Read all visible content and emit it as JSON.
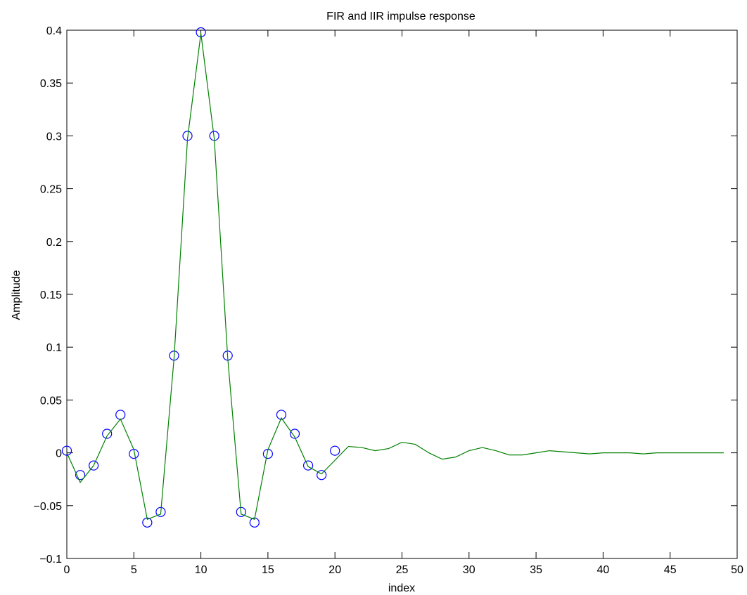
{
  "chart_data": {
    "type": "line",
    "title": "FIR and IIR impulse response",
    "xlabel": "index",
    "ylabel": "Amplitude",
    "xlim": [
      0,
      50
    ],
    "ylim": [
      -0.1,
      0.4
    ],
    "xticks": [
      0,
      5,
      10,
      15,
      20,
      25,
      30,
      35,
      40,
      45,
      50
    ],
    "yticks": [
      -0.1,
      -0.05,
      0,
      0.05,
      0.1,
      0.15,
      0.2,
      0.25,
      0.3,
      0.35,
      0.4
    ],
    "xtick_labels": [
      "0",
      "5",
      "10",
      "15",
      "20",
      "25",
      "30",
      "35",
      "40",
      "45",
      "50"
    ],
    "ytick_labels": [
      "−0.1",
      "−0.05",
      "0",
      "0.05",
      "0.1",
      "0.15",
      "0.2",
      "0.25",
      "0.3",
      "0.35",
      "0.4"
    ],
    "grid": false,
    "series": [
      {
        "style": "markers-circle",
        "color": "#0000ff",
        "x": [
          0,
          1,
          2,
          3,
          4,
          5,
          6,
          7,
          8,
          9,
          10,
          11,
          12,
          13,
          14,
          15,
          16,
          17,
          18,
          19,
          20
        ],
        "y": [
          0.002,
          -0.021,
          -0.012,
          0.018,
          0.036,
          -0.001,
          -0.066,
          -0.056,
          0.092,
          0.3,
          0.398,
          0.3,
          0.092,
          -0.056,
          -0.066,
          -0.001,
          0.036,
          0.018,
          -0.012,
          -0.021,
          0.002
        ]
      },
      {
        "style": "line",
        "color": "#008000",
        "x": [
          0,
          1,
          2,
          3,
          4,
          5,
          6,
          7,
          8,
          9,
          10,
          11,
          12,
          13,
          14,
          15,
          16,
          17,
          18,
          19,
          20,
          21,
          22,
          23,
          24,
          25,
          26,
          27,
          28,
          29,
          30,
          31,
          32,
          33,
          34,
          35,
          36,
          37,
          38,
          39,
          40,
          41,
          42,
          43,
          44,
          45,
          46,
          47,
          48,
          49
        ],
        "y": [
          0.0,
          -0.028,
          -0.012,
          0.016,
          0.032,
          0.003,
          -0.063,
          -0.058,
          0.09,
          0.297,
          0.397,
          0.297,
          0.09,
          -0.058,
          -0.063,
          0.003,
          0.033,
          0.015,
          -0.013,
          -0.02,
          -0.007,
          0.006,
          0.005,
          0.002,
          0.004,
          0.01,
          0.008,
          0.0,
          -0.006,
          -0.004,
          0.002,
          0.005,
          0.002,
          -0.002,
          -0.002,
          0.0,
          0.002,
          0.001,
          0.0,
          -0.001,
          0.0,
          0.0,
          0.0,
          -0.001,
          0.0,
          0.0,
          0.0,
          0.0,
          0.0,
          0.0
        ]
      }
    ]
  }
}
